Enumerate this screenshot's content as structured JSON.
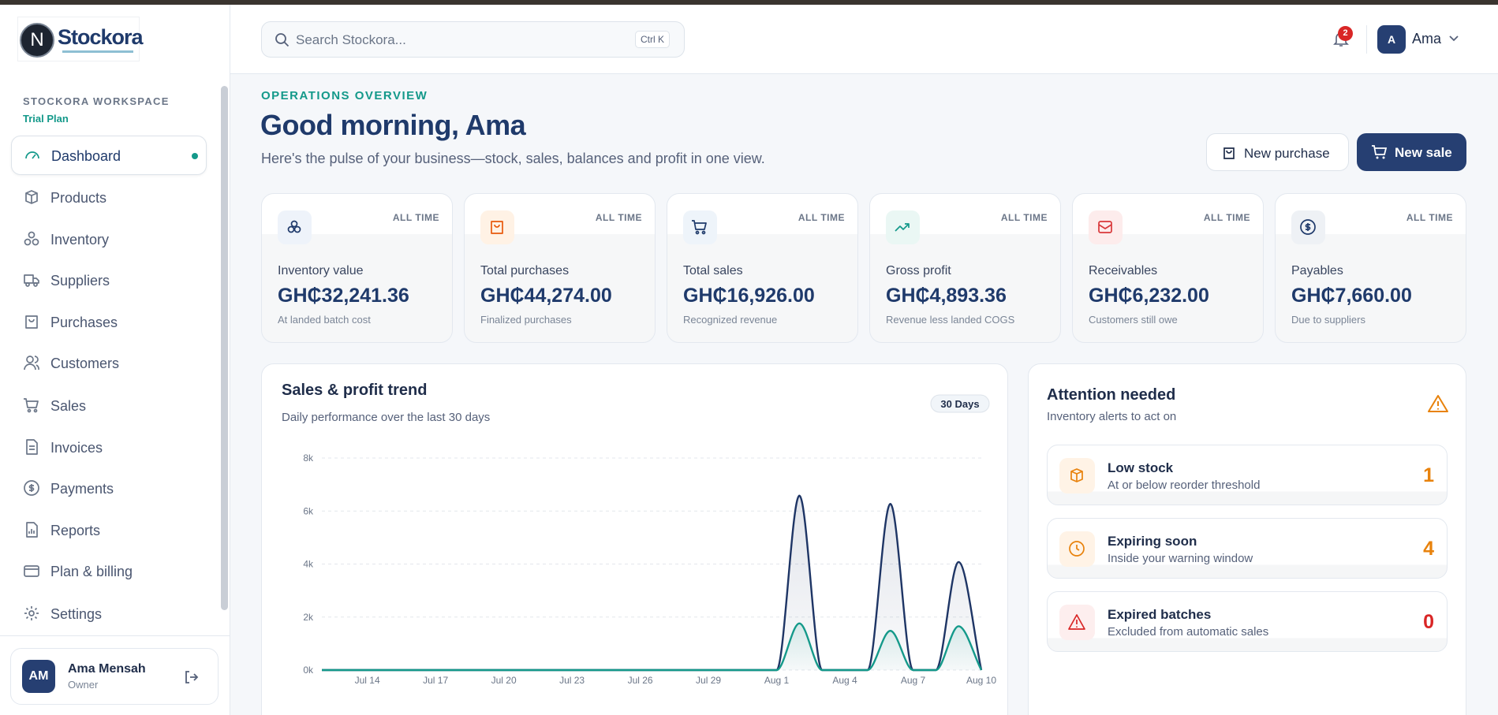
{
  "brand": {
    "mark": "N",
    "name": "Stockora"
  },
  "sidebar": {
    "workspace": "STOCKORA WORKSPACE",
    "plan": "Trial Plan",
    "nav": [
      "Dashboard",
      "Products",
      "Inventory",
      "Suppliers",
      "Purchases",
      "Customers",
      "Sales",
      "Invoices",
      "Payments",
      "Reports",
      "Plan & billing",
      "Settings"
    ],
    "user": {
      "initials": "AM",
      "name": "Ama Mensah",
      "role": "Owner"
    }
  },
  "header": {
    "search_placeholder": "Search Stockora...",
    "shortcut": "Ctrl K",
    "notifications": "2",
    "avatar": "A",
    "user": "Ama"
  },
  "overview": {
    "eyebrow": "OPERATIONS OVERVIEW",
    "greeting": "Good morning, Ama",
    "subtitle": "Here's the pulse of your business—stock, sales, balances and profit in one view.",
    "actions": [
      "New purchase",
      "New sale"
    ]
  },
  "kpis": [
    {
      "period": "ALL TIME",
      "label": "Inventory value",
      "value": "GH₵32,241.36",
      "note": "At landed batch cost"
    },
    {
      "period": "ALL TIME",
      "label": "Total purchases",
      "value": "GH₵44,274.00",
      "note": "Finalized purchases"
    },
    {
      "period": "ALL TIME",
      "label": "Total sales",
      "value": "GH₵16,926.00",
      "note": "Recognized revenue"
    },
    {
      "period": "ALL TIME",
      "label": "Gross profit",
      "value": "GH₵4,893.36",
      "note": "Revenue less landed COGS"
    },
    {
      "period": "ALL TIME",
      "label": "Receivables",
      "value": "GH₵6,232.00",
      "note": "Customers still owe"
    },
    {
      "period": "ALL TIME",
      "label": "Payables",
      "value": "GH₵7,660.00",
      "note": "Due to suppliers"
    }
  ],
  "chart_data": {
    "type": "line",
    "title": "Sales & profit trend",
    "subtitle": "Daily performance over the last 30 days",
    "period": "30 Days",
    "categories": [
      null,
      null,
      "Jul 14",
      null,
      null,
      "Jul 17",
      null,
      null,
      "Jul 20",
      null,
      null,
      "Jul 23",
      null,
      null,
      "Jul 26",
      null,
      null,
      "Jul 29",
      null,
      null,
      "Aug 1",
      null,
      null,
      "Aug 4",
      null,
      null,
      "Aug 7",
      null,
      null,
      "Aug 10"
    ],
    "series": [
      {
        "name": "Sales",
        "color": "#1e3565",
        "values": [
          0,
          0,
          0,
          0,
          0,
          0,
          0,
          0,
          0,
          0,
          0,
          0,
          0,
          0,
          0,
          0,
          0,
          0,
          0,
          0,
          0,
          6580,
          0,
          0,
          0,
          6270,
          0,
          0,
          4076,
          0
        ]
      },
      {
        "name": "Profit",
        "color": "#14998a",
        "values": [
          0,
          0,
          0,
          0,
          0,
          0,
          0,
          0,
          0,
          0,
          0,
          0,
          0,
          0,
          0,
          0,
          0,
          0,
          0,
          0,
          0,
          1760,
          0,
          0,
          0,
          1480,
          0,
          0,
          1653,
          0
        ]
      }
    ],
    "ylim": [
      0,
      8000
    ],
    "yticks": [
      {
        "value": 0,
        "label": "0k"
      },
      {
        "value": 2000,
        "label": "2k"
      },
      {
        "value": 4000,
        "label": "4k"
      },
      {
        "value": 6000,
        "label": "6k"
      },
      {
        "value": 8000,
        "label": "8k"
      }
    ],
    "grid": true
  },
  "attention": {
    "title": "Attention needed",
    "subtitle": "Inventory alerts to act on",
    "items": [
      {
        "title": "Low stock",
        "note": "At or below reorder threshold",
        "count": "1"
      },
      {
        "title": "Expiring soon",
        "note": "Inside your warning window",
        "count": "4"
      },
      {
        "title": "Expired batches",
        "note": "Excluded from automatic sales",
        "count": "0"
      }
    ]
  }
}
